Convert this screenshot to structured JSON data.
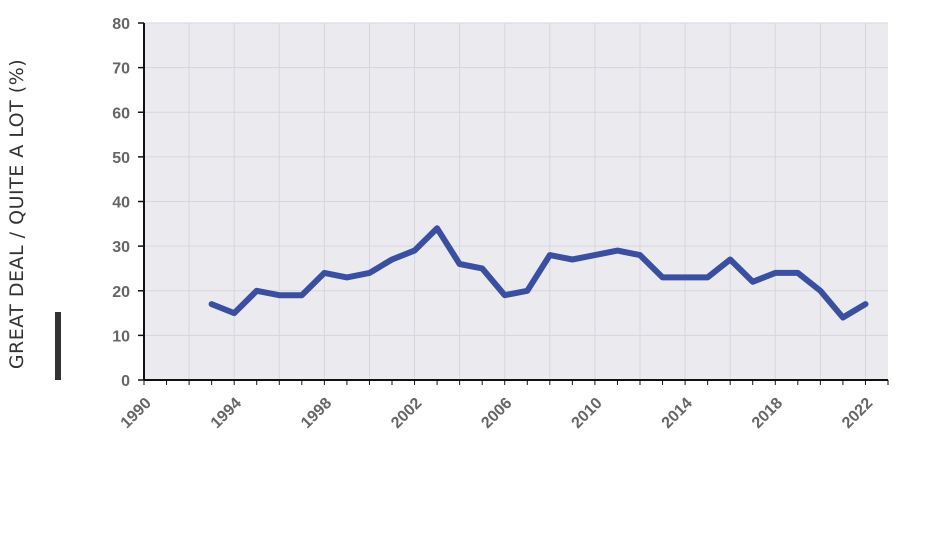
{
  "chart_data": {
    "type": "line",
    "title": "",
    "xlabel": "",
    "ylabel": "GREAT DEAL / QUITE A LOT (%)",
    "xlim": [
      1990,
      2023
    ],
    "ylim": [
      0,
      80
    ],
    "x_ticks": [
      1990,
      1994,
      1998,
      2002,
      2006,
      2010,
      2014,
      2018,
      2022
    ],
    "y_ticks": [
      0,
      10,
      20,
      30,
      40,
      50,
      60,
      70,
      80
    ],
    "x_tick_labels": [
      "1990",
      "1994",
      "1998",
      "2002",
      "2006",
      "2010",
      "2014",
      "2018",
      "2022"
    ],
    "y_tick_labels": [
      "0",
      "10",
      "20",
      "30",
      "40",
      "50",
      "60",
      "70",
      "80"
    ],
    "grid": true,
    "series": [
      {
        "color": "#3a4fa0",
        "x": [
          1993,
          1994,
          1995,
          1996,
          1997,
          1998,
          1999,
          2000,
          2001,
          2002,
          2003,
          2004,
          2005,
          2006,
          2007,
          2008,
          2009,
          2010,
          2011,
          2012,
          2013,
          2014,
          2015,
          2016,
          2017,
          2018,
          2019,
          2020,
          2021,
          2022
        ],
        "values": [
          17,
          15,
          20,
          19,
          19,
          24,
          23,
          24,
          27,
          29,
          34,
          26,
          25,
          19,
          20,
          28,
          27,
          28,
          29,
          28,
          23,
          23,
          23,
          27,
          22,
          24,
          24,
          20,
          14,
          17
        ]
      }
    ],
    "colors": {
      "plot_background": "#ebebef",
      "grid": "#d6d6dc",
      "axis": "#111111",
      "line": "#3a4fa0",
      "legend_bar": "#333333"
    }
  }
}
